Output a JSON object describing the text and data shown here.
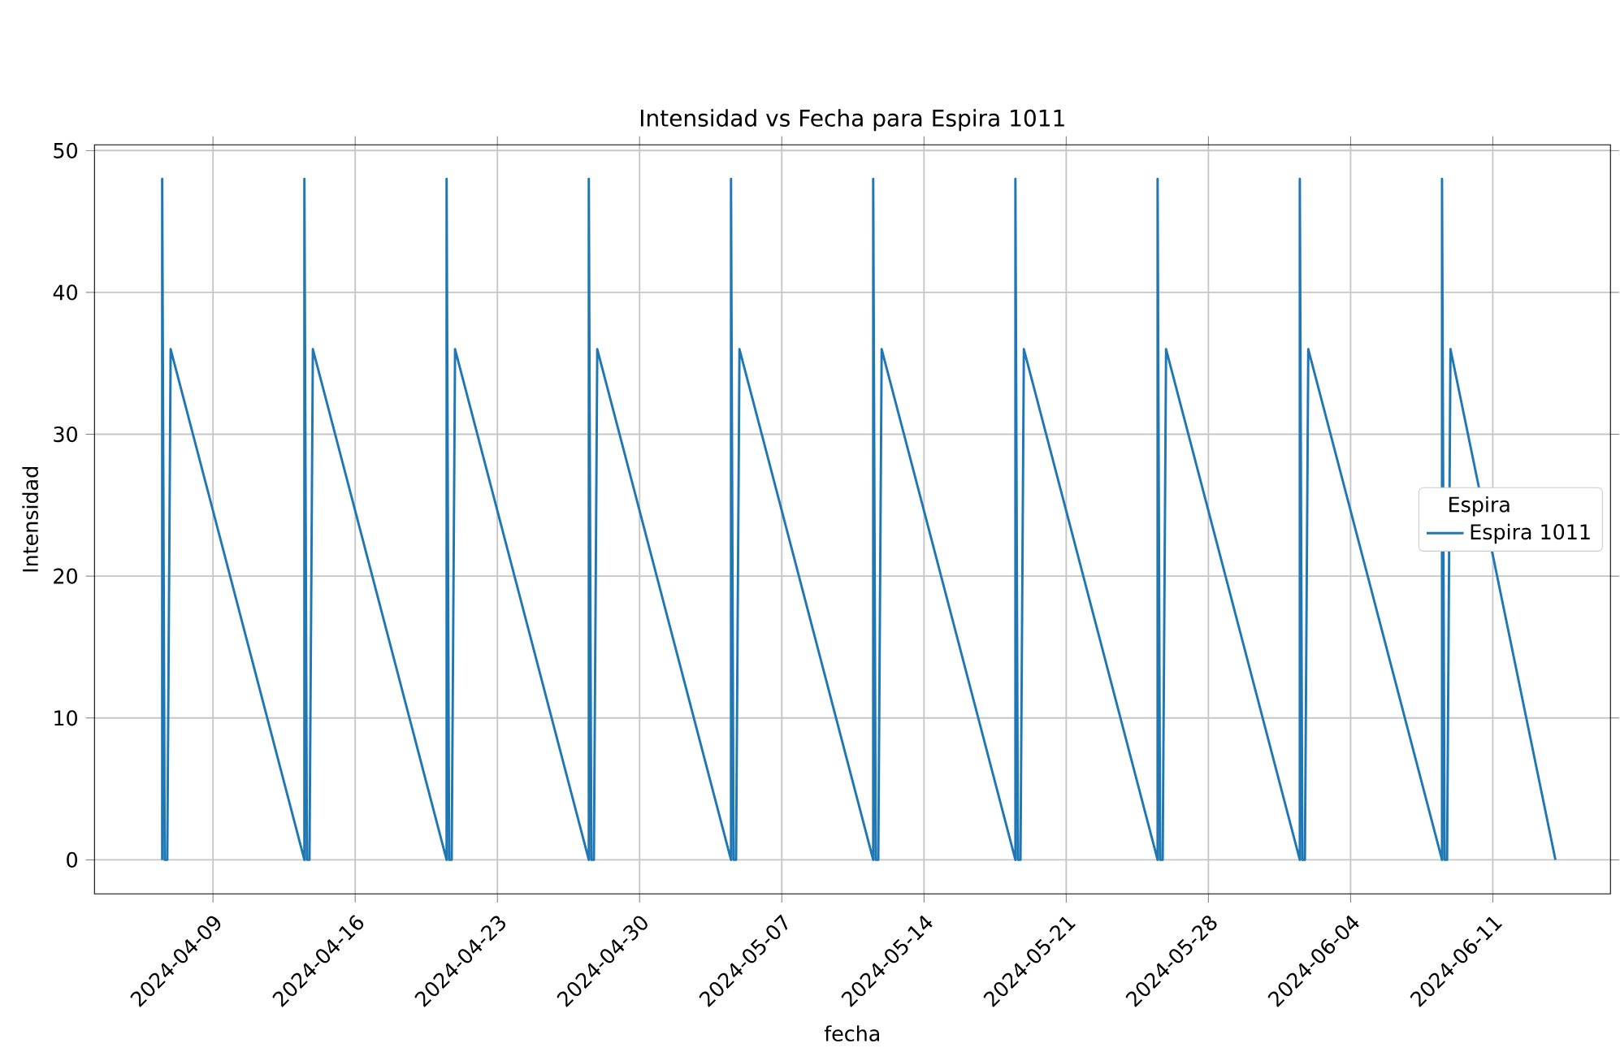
{
  "chart_data": {
    "type": "line",
    "title": "Intensidad vs Fecha para Espira 1011",
    "xlabel": "fecha",
    "ylabel": "Intensidad",
    "legend_title": "Espira",
    "legend": "right",
    "grid": true,
    "xlim": [
      "2024-04-03T04:00",
      "2024-06-16T19:00"
    ],
    "ylim": [
      -2.4,
      50.4
    ],
    "xticks": [
      "2024-04-09",
      "2024-04-16",
      "2024-04-23",
      "2024-04-30",
      "2024-05-07",
      "2024-05-14",
      "2024-05-21",
      "2024-05-28",
      "2024-06-04",
      "2024-06-11"
    ],
    "yticks": [
      0,
      10,
      20,
      30,
      40,
      50
    ],
    "series": [
      {
        "name": "Espira 1011",
        "color": "#1f77b4",
        "x": [
          "2024-04-06T12:00",
          "2024-04-06T12:00",
          "2024-04-06T15:00",
          "2024-04-06T18:00",
          "2024-04-06T22:00",
          "2024-04-13T12:00",
          "2024-04-13T12:00",
          "2024-04-13T15:00",
          "2024-04-13T18:00",
          "2024-04-13T22:00",
          "2024-04-20T12:00",
          "2024-04-20T12:00",
          "2024-04-20T15:00",
          "2024-04-20T18:00",
          "2024-04-20T22:00",
          "2024-04-27T12:00",
          "2024-04-27T12:00",
          "2024-04-27T15:00",
          "2024-04-27T18:00",
          "2024-04-27T22:00",
          "2024-05-04T12:00",
          "2024-05-04T12:00",
          "2024-05-04T15:00",
          "2024-05-04T18:00",
          "2024-05-04T22:00",
          "2024-05-11T12:00",
          "2024-05-11T12:00",
          "2024-05-11T15:00",
          "2024-05-11T18:00",
          "2024-05-11T22:00",
          "2024-05-18T12:00",
          "2024-05-18T12:00",
          "2024-05-18T15:00",
          "2024-05-18T18:00",
          "2024-05-18T22:00",
          "2024-05-25T12:00",
          "2024-05-25T12:00",
          "2024-05-25T15:00",
          "2024-05-25T18:00",
          "2024-05-25T22:00",
          "2024-06-01T12:00",
          "2024-06-01T12:00",
          "2024-06-01T15:00",
          "2024-06-01T18:00",
          "2024-06-01T22:00",
          "2024-06-08T12:00",
          "2024-06-08T12:00",
          "2024-06-08T15:00",
          "2024-06-08T18:00",
          "2024-06-08T22:00",
          "2024-06-14T02:00"
        ],
        "values": [
          0,
          48,
          0,
          0,
          36,
          0,
          48,
          0,
          0,
          36,
          0,
          48,
          0,
          0,
          36,
          0,
          48,
          0,
          0,
          36,
          0,
          48,
          0,
          0,
          36,
          0,
          48,
          0,
          0,
          36,
          0,
          48,
          0,
          0,
          36,
          0,
          48,
          0,
          0,
          36,
          0,
          48,
          0,
          0,
          36,
          0,
          48,
          0,
          0,
          36,
          0
        ]
      }
    ]
  }
}
